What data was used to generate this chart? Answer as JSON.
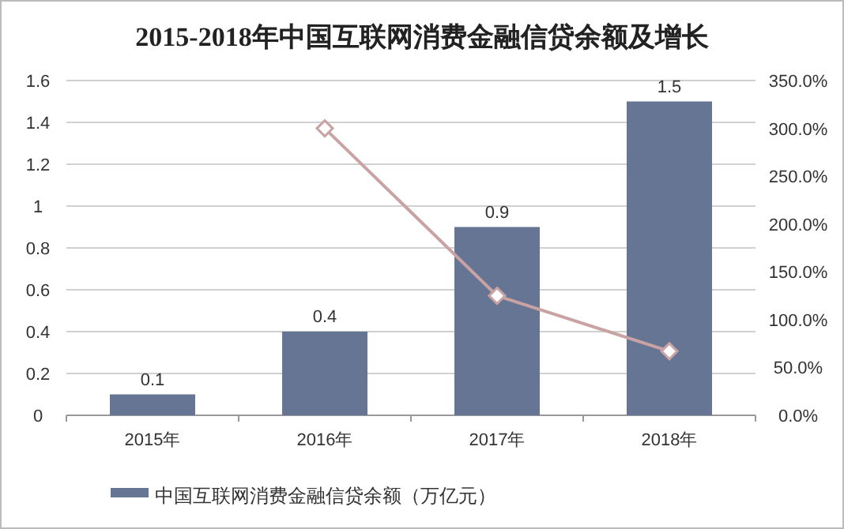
{
  "chart_data": {
    "type": "bar",
    "title": "2015-2018年中国互联网消费金融信贷余额及增长",
    "categories": [
      "2015年",
      "2016年",
      "2017年",
      "2018年"
    ],
    "series": [
      {
        "name": "中国互联网消费金融信贷余额（万亿元）",
        "color": "#677594",
        "values": [
          0.1,
          0.4,
          0.9,
          1.5
        ],
        "value_labels": [
          "0.1",
          "0.4",
          "0.9",
          "1.5"
        ]
      },
      {
        "type": "line",
        "axis": "y2",
        "color": "#c9a3a3",
        "values": [
          null,
          300,
          125,
          67
        ],
        "marker": "diamond"
      }
    ],
    "ylim": [
      0,
      1.6
    ],
    "yticks": [
      0,
      0.2,
      0.4,
      0.6,
      0.8,
      1,
      1.2,
      1.4,
      1.6
    ],
    "y2lim": [
      0,
      350
    ],
    "y2ticks": [
      {
        "value": 0,
        "label": "0.0%"
      },
      {
        "value": 50,
        "label": "50.0%"
      },
      {
        "value": 100,
        "label": "100.0%"
      },
      {
        "value": 150,
        "label": "150.0%"
      },
      {
        "value": 200,
        "label": "200.0%"
      },
      {
        "value": 250,
        "label": "250.0%"
      },
      {
        "value": 300,
        "label": "300.0%"
      },
      {
        "value": 350,
        "label": "350.0%"
      }
    ],
    "grid": "y",
    "legend": "bottom"
  }
}
